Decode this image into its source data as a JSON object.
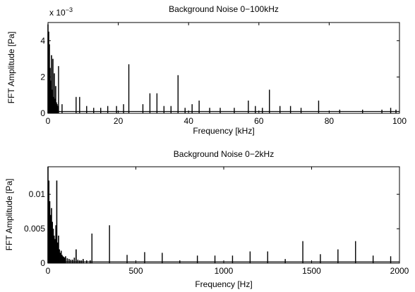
{
  "chart_data": [
    {
      "type": "line",
      "title": "Background Noise 0−100kHz",
      "xlabel": "Frequency [kHz]",
      "ylabel": "FFT Amplitude [Pa]",
      "y_exponent_label": "x 10",
      "y_exponent_power": "−3",
      "xlim": [
        0,
        100
      ],
      "ylim": [
        0,
        0.005
      ],
      "x_ticks": [
        0,
        20,
        40,
        60,
        80,
        100
      ],
      "x_tick_labels": [
        "0",
        "20",
        "40",
        "60",
        "80",
        "100"
      ],
      "y_ticks": [
        0,
        0.002,
        0.004
      ],
      "y_tick_labels": [
        "0",
        "2",
        "4"
      ],
      "grid": false,
      "color": "#000000",
      "noise_floor": 0.0001,
      "low_freq_band": [
        [
          0.0,
          0.0049
        ],
        [
          0.2,
          0.0045
        ],
        [
          0.4,
          0.0038
        ],
        [
          0.6,
          0.0025
        ],
        [
          0.8,
          0.0018
        ],
        [
          1.0,
          0.0032
        ],
        [
          1.2,
          0.0013
        ],
        [
          1.4,
          0.003
        ],
        [
          1.6,
          0.0009
        ],
        [
          1.8,
          0.0022
        ],
        [
          2.0,
          0.0008
        ],
        [
          2.2,
          0.0015
        ],
        [
          2.4,
          0.0006
        ],
        [
          2.6,
          0.0005
        ],
        [
          2.8,
          0.0004
        ]
      ],
      "peaks": [
        [
          3.0,
          0.0026
        ],
        [
          4.0,
          0.0005
        ],
        [
          8.0,
          0.0009
        ],
        [
          9.0,
          0.0009
        ],
        [
          11.0,
          0.0004
        ],
        [
          13.0,
          0.0003
        ],
        [
          15.0,
          0.0003
        ],
        [
          17.0,
          0.0004
        ],
        [
          19.5,
          0.0004
        ],
        [
          21.5,
          0.0005
        ],
        [
          23.0,
          0.0027
        ],
        [
          27.0,
          0.0005
        ],
        [
          29.0,
          0.0011
        ],
        [
          31.0,
          0.0011
        ],
        [
          33.0,
          0.0004
        ],
        [
          35.0,
          0.0004
        ],
        [
          37.0,
          0.0021
        ],
        [
          39.0,
          0.0003
        ],
        [
          41.0,
          0.0005
        ],
        [
          43.0,
          0.0007
        ],
        [
          46.0,
          0.0003
        ],
        [
          49.0,
          0.0003
        ],
        [
          53.0,
          0.0003
        ],
        [
          57.0,
          0.0007
        ],
        [
          59.0,
          0.0004
        ],
        [
          61.0,
          0.0003
        ],
        [
          63.0,
          0.0013
        ],
        [
          66.0,
          0.0004
        ],
        [
          69.0,
          0.0004
        ],
        [
          72.0,
          0.0003
        ],
        [
          77.0,
          0.0007
        ],
        [
          83.0,
          0.0002
        ],
        [
          89.5,
          0.0002
        ],
        [
          95.0,
          0.0002
        ],
        [
          97.5,
          0.0003
        ],
        [
          99.0,
          0.0002
        ]
      ]
    },
    {
      "type": "line",
      "title": "Background Noise 0−2kHz",
      "xlabel": "Frequency [Hz]",
      "ylabel": "FFT Amplitude [Pa]",
      "xlim": [
        0,
        2000
      ],
      "ylim": [
        0,
        0.014
      ],
      "x_ticks": [
        0,
        500,
        1000,
        1500,
        2000
      ],
      "x_tick_labels": [
        "0",
        "500",
        "1000",
        "1500",
        "2000"
      ],
      "y_ticks": [
        0,
        0.005,
        0.01
      ],
      "y_tick_labels": [
        "0",
        "0.005",
        "0.01"
      ],
      "grid": false,
      "color": "#000000",
      "noise_floor": 0.0002,
      "low_freq_band": [
        [
          0,
          0.014
        ],
        [
          5,
          0.012
        ],
        [
          10,
          0.009
        ],
        [
          15,
          0.007
        ],
        [
          20,
          0.008
        ],
        [
          25,
          0.006
        ],
        [
          30,
          0.005
        ],
        [
          35,
          0.004
        ],
        [
          40,
          0.0035
        ],
        [
          45,
          0.0055
        ],
        [
          50,
          0.012
        ],
        [
          55,
          0.003
        ],
        [
          60,
          0.004
        ],
        [
          65,
          0.002
        ],
        [
          70,
          0.0015
        ],
        [
          75,
          0.0018
        ],
        [
          80,
          0.0012
        ],
        [
          85,
          0.001
        ],
        [
          90,
          0.0009
        ],
        [
          95,
          0.0008
        ],
        [
          100,
          0.001
        ],
        [
          110,
          0.0007
        ],
        [
          120,
          0.0006
        ],
        [
          130,
          0.0005
        ],
        [
          140,
          0.0005
        ],
        [
          150,
          0.0008
        ],
        [
          160,
          0.002
        ],
        [
          170,
          0.0005
        ],
        [
          180,
          0.0004
        ],
        [
          190,
          0.0004
        ],
        [
          200,
          0.0006
        ],
        [
          220,
          0.0004
        ],
        [
          240,
          0.0004
        ]
      ],
      "peaks": [
        [
          250,
          0.0043
        ],
        [
          350,
          0.0055
        ],
        [
          450,
          0.0012
        ],
        [
          550,
          0.0016
        ],
        [
          650,
          0.0015
        ],
        [
          750,
          0.0004
        ],
        [
          850,
          0.0011
        ],
        [
          950,
          0.0011
        ],
        [
          1050,
          0.0011
        ],
        [
          1150,
          0.0017
        ],
        [
          1250,
          0.0017
        ],
        [
          1350,
          0.0006
        ],
        [
          1450,
          0.0032
        ],
        [
          1550,
          0.0013
        ],
        [
          1650,
          0.002
        ],
        [
          1750,
          0.0032
        ],
        [
          1850,
          0.0011
        ],
        [
          1950,
          0.001
        ]
      ]
    }
  ]
}
